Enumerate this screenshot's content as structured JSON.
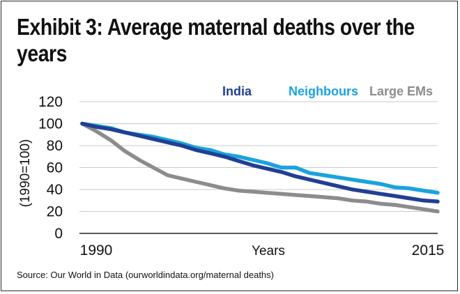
{
  "title": "Exhibit 3: Average maternal deaths over the years",
  "source": "Source: Our World in Data (ourworldindata.org/maternal deaths)",
  "chart_data": {
    "type": "line",
    "title": "Exhibit 3: Average maternal deaths over the years",
    "xlabel": "Years",
    "ylabel": "(1990=100)",
    "x_tick_labels": [
      "1990",
      "2015"
    ],
    "y_ticks": [
      "0",
      "20",
      "40",
      "60",
      "80",
      "100",
      "120"
    ],
    "ylim": [
      0,
      120
    ],
    "xlim": [
      1990,
      2015
    ],
    "grid": "horizontal",
    "legend_position": "top-right",
    "x": [
      1990,
      1991,
      1992,
      1993,
      1994,
      1995,
      1996,
      1997,
      1998,
      1999,
      2000,
      2001,
      2002,
      2003,
      2004,
      2005,
      2006,
      2007,
      2008,
      2009,
      2010,
      2011,
      2012,
      2013,
      2014,
      2015
    ],
    "series": [
      {
        "name": "Large EMs",
        "color": "#8c8c8c",
        "values": [
          100,
          93,
          85,
          75,
          67,
          60,
          53,
          50,
          47,
          44,
          41,
          39,
          38,
          37,
          36,
          35,
          34,
          33,
          32,
          30,
          29,
          27,
          26,
          24,
          22,
          20
        ]
      },
      {
        "name": "Neighbours",
        "color": "#1aa3dc",
        "values": [
          100,
          98,
          96,
          92,
          90,
          88,
          85,
          82,
          78,
          76,
          72,
          70,
          67,
          64,
          60,
          60,
          55,
          53,
          51,
          49,
          47,
          45,
          42,
          41,
          39,
          37
        ]
      },
      {
        "name": "India",
        "color": "#213f93",
        "values": [
          100,
          97,
          95,
          92,
          89,
          86,
          83,
          80,
          76,
          73,
          70,
          66,
          62,
          59,
          56,
          52,
          49,
          46,
          43,
          40,
          38,
          36,
          34,
          32,
          30,
          29
        ]
      }
    ]
  }
}
